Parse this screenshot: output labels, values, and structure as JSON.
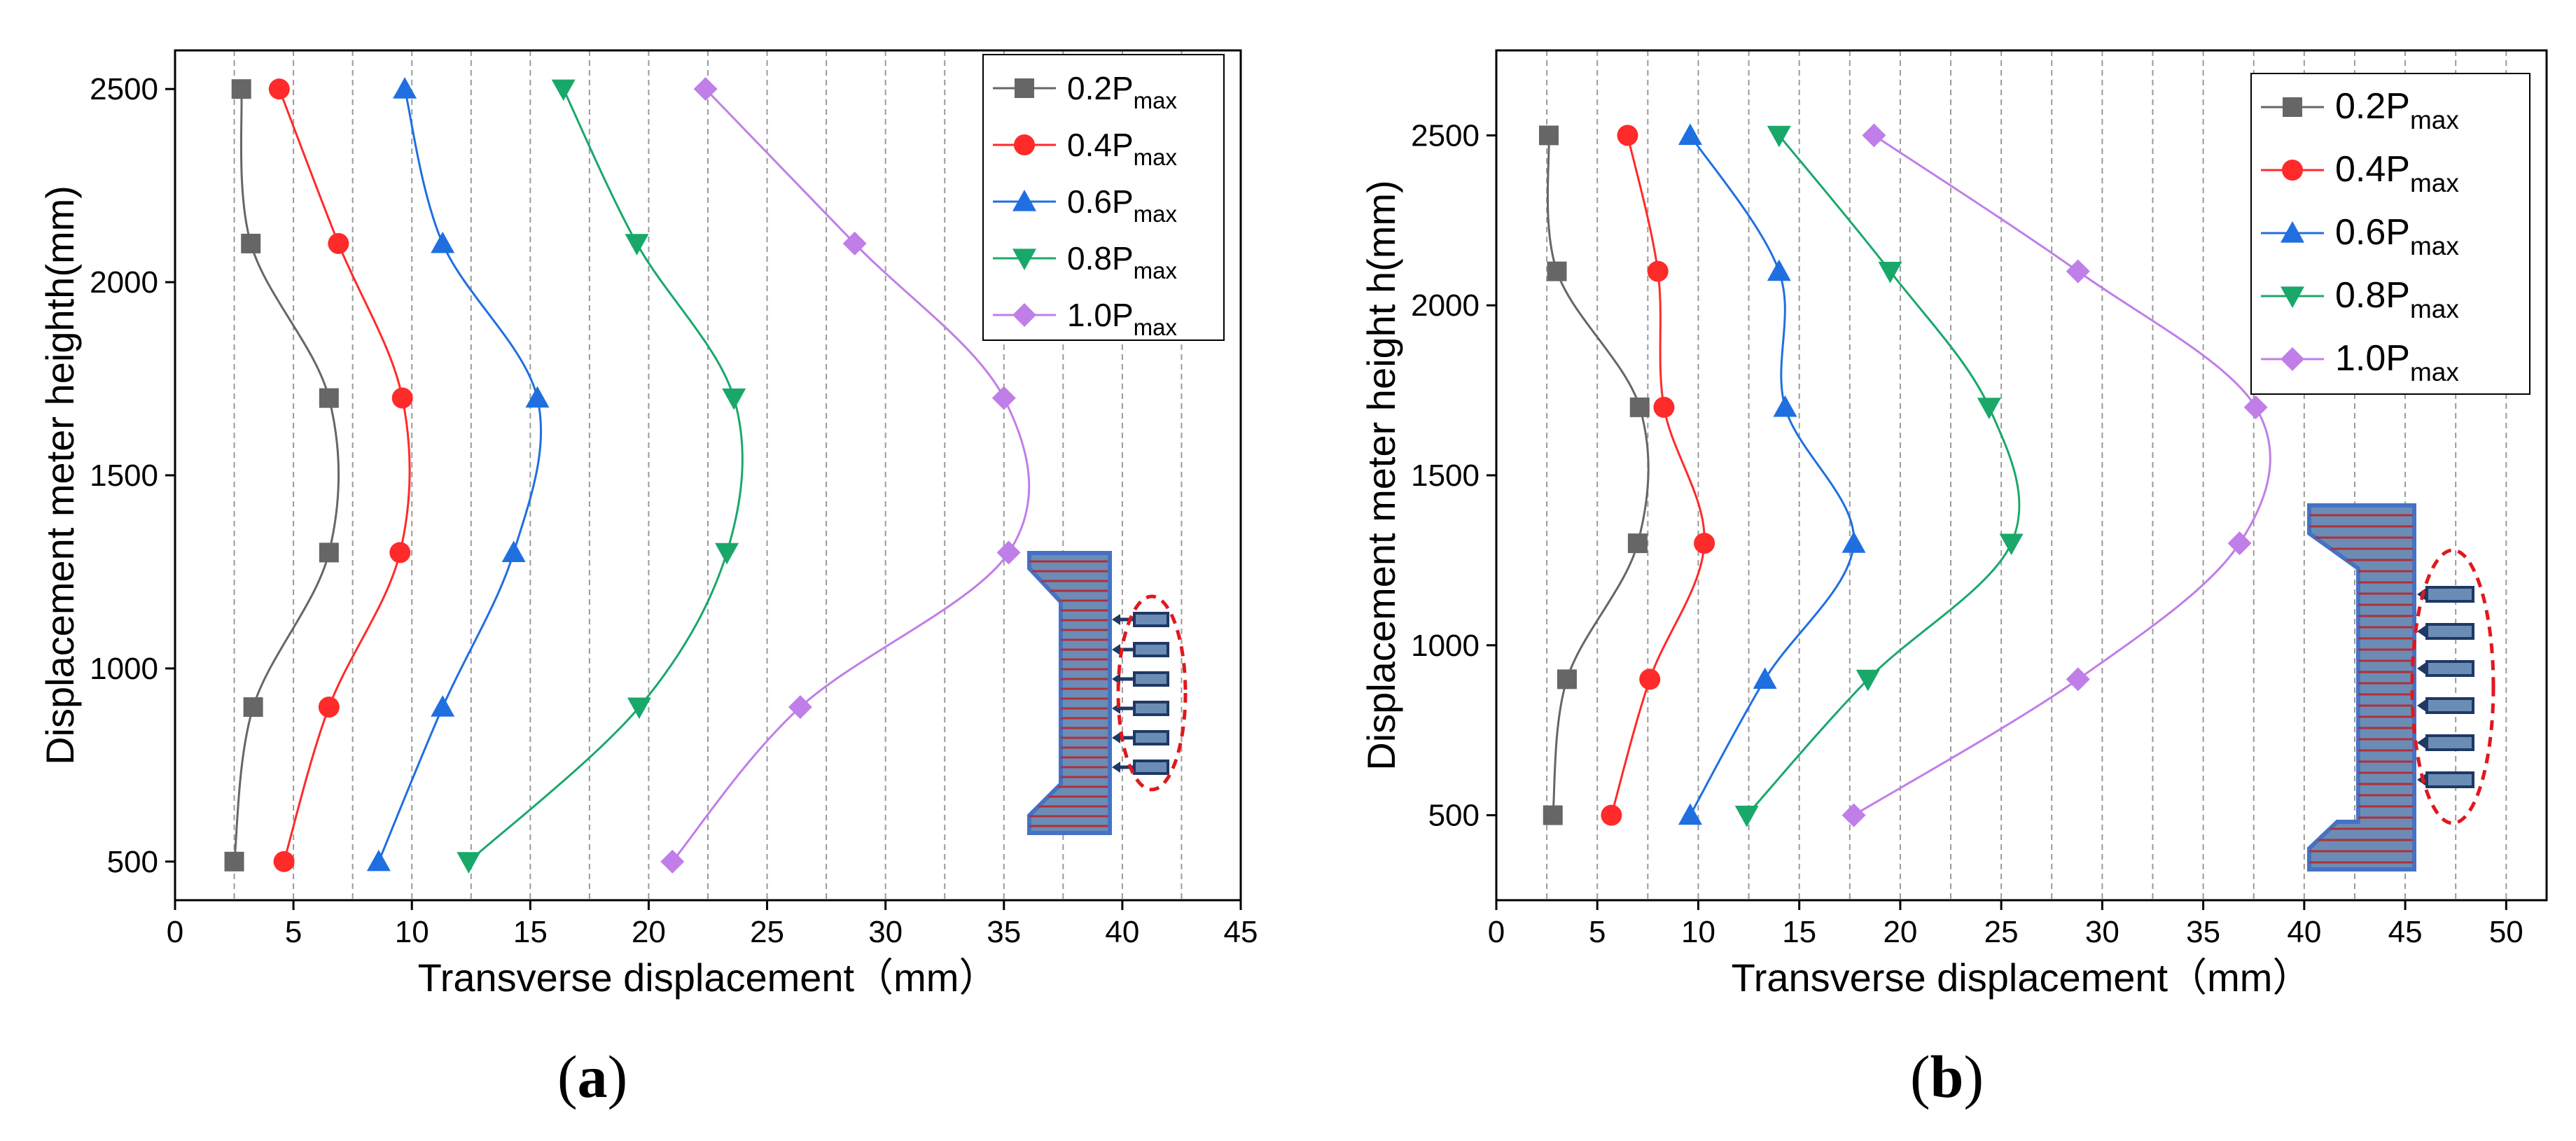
{
  "chart_data": [
    {
      "id": "a",
      "type": "line",
      "caption": "a",
      "xlabel": "Transverse displacement（mm）",
      "ylabel": "Displacement meter heighth(mm)",
      "xlim": [
        0,
        45
      ],
      "ylim": [
        400,
        2600
      ],
      "xticks": [
        0,
        5,
        10,
        15,
        20,
        25,
        30,
        35,
        40,
        45
      ],
      "yticks": [
        500,
        1000,
        1500,
        2000,
        2500
      ],
      "grid": "vertical-dashed",
      "legend_position": "top-right",
      "heights": [
        500,
        900,
        1300,
        1700,
        2100,
        2500
      ],
      "series": [
        {
          "name": "0.2P",
          "sub": "max",
          "color": "#666666",
          "marker": "square",
          "x": [
            2.5,
            3.3,
            6.5,
            6.5,
            3.2,
            2.8
          ]
        },
        {
          "name": "0.4P",
          "sub": "max",
          "color": "#ff2a2a",
          "marker": "circle",
          "x": [
            4.6,
            6.5,
            9.5,
            9.6,
            6.9,
            4.4
          ]
        },
        {
          "name": "0.6P",
          "sub": "max",
          "color": "#1f6fe0",
          "marker": "triangle-up",
          "x": [
            8.6,
            11.3,
            14.3,
            15.3,
            11.3,
            9.7
          ]
        },
        {
          "name": "0.8P",
          "sub": "max",
          "color": "#19a86a",
          "marker": "triangle-down",
          "x": [
            12.4,
            19.6,
            23.3,
            23.6,
            19.5,
            16.4
          ]
        },
        {
          "name": "1.0P",
          "sub": "max",
          "color": "#c07ee8",
          "marker": "diamond",
          "x": [
            21.0,
            26.4,
            35.2,
            35.0,
            28.7,
            22.4
          ]
        }
      ]
    },
    {
      "id": "b",
      "type": "line",
      "caption": "b",
      "xlabel": "Transverse displacement（mm）",
      "ylabel": "Displacement meter height h(mm)",
      "xlim": [
        0,
        52
      ],
      "ylim": [
        250,
        2750
      ],
      "xticks": [
        0,
        5,
        10,
        15,
        20,
        25,
        30,
        35,
        40,
        45,
        50
      ],
      "yticks": [
        500,
        1000,
        1500,
        2000,
        2500
      ],
      "grid": "vertical-dashed",
      "legend_position": "top-right",
      "heights": [
        500,
        900,
        1300,
        1700,
        2100,
        2500
      ],
      "series": [
        {
          "name": "0.2P",
          "sub": "max",
          "color": "#666666",
          "marker": "square",
          "x": [
            2.8,
            3.5,
            7.0,
            7.1,
            3.0,
            2.6
          ]
        },
        {
          "name": "0.4P",
          "sub": "max",
          "color": "#ff2a2a",
          "marker": "circle",
          "x": [
            5.7,
            7.6,
            10.3,
            8.3,
            8.0,
            6.5
          ]
        },
        {
          "name": "0.6P",
          "sub": "max",
          "color": "#1f6fe0",
          "marker": "triangle-up",
          "x": [
            9.6,
            13.3,
            17.7,
            14.3,
            14.0,
            9.6
          ]
        },
        {
          "name": "0.8P",
          "sub": "max",
          "color": "#19a86a",
          "marker": "triangle-down",
          "x": [
            12.4,
            18.4,
            25.5,
            24.4,
            19.5,
            14.0
          ]
        },
        {
          "name": "1.0P",
          "sub": "max",
          "color": "#c07ee8",
          "marker": "diamond",
          "x": [
            17.7,
            28.8,
            36.8,
            37.6,
            28.8,
            18.7
          ]
        }
      ]
    }
  ]
}
